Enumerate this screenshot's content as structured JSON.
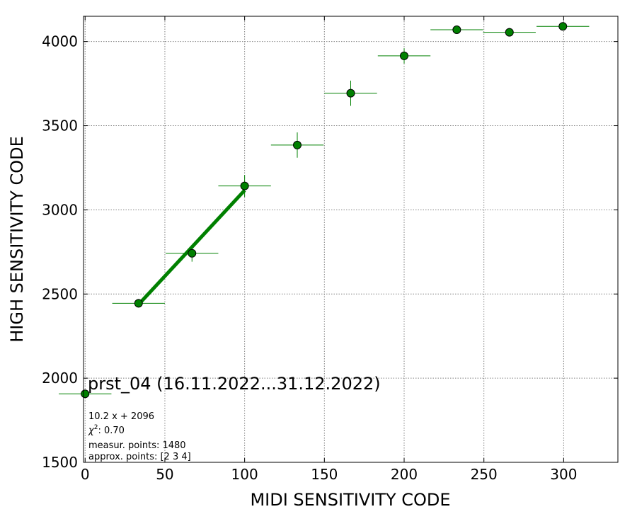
{
  "chart_data": {
    "type": "scatter",
    "xlabel": "MIDI SENSITIVITY CODE",
    "ylabel": "HIGH SENSITIVITY CODE",
    "xlim": [
      -1,
      334
    ],
    "ylim": [
      1500,
      4150
    ],
    "x_ticks": [
      "0",
      "50",
      "100",
      "150",
      "200",
      "250",
      "300"
    ],
    "y_ticks": [
      "1500",
      "2000",
      "2500",
      "3000",
      "3500",
      "4000"
    ],
    "grid": true,
    "marker_color": "#008000",
    "line_color": "#008000",
    "points": [
      {
        "x": 0,
        "y": 1907,
        "xerr": 16.5,
        "yerr": 0
      },
      {
        "x": 33.5,
        "y": 2445,
        "xerr": 16.5,
        "yerr": 25
      },
      {
        "x": 67,
        "y": 2742,
        "xerr": 16.5,
        "yerr": 50
      },
      {
        "x": 100,
        "y": 3142,
        "xerr": 16.5,
        "yerr": 65
      },
      {
        "x": 133,
        "y": 3385,
        "xerr": 16.5,
        "yerr": 75
      },
      {
        "x": 166.5,
        "y": 3693,
        "xerr": 16.5,
        "yerr": 75
      },
      {
        "x": 200,
        "y": 3915,
        "xerr": 16.5,
        "yerr": 45
      },
      {
        "x": 233,
        "y": 4070,
        "xerr": 16.5,
        "yerr": 0
      },
      {
        "x": 266,
        "y": 4055,
        "xerr": 16.5,
        "yerr": 25
      },
      {
        "x": 299.5,
        "y": 4090,
        "xerr": 16.5,
        "yerr": 0
      }
    ],
    "fit": {
      "slope": 10.2,
      "intercept": 2096,
      "x_range": [
        33.5,
        100
      ]
    },
    "annotation": {
      "title": "prst_04 (16.11.2022...31.12.2022)",
      "equation": "10.2 x + 2096",
      "chi2_value": "0.70",
      "measur_points": "measur. points: 1480",
      "approx_points": "approx. points: [2 3 4]"
    }
  }
}
